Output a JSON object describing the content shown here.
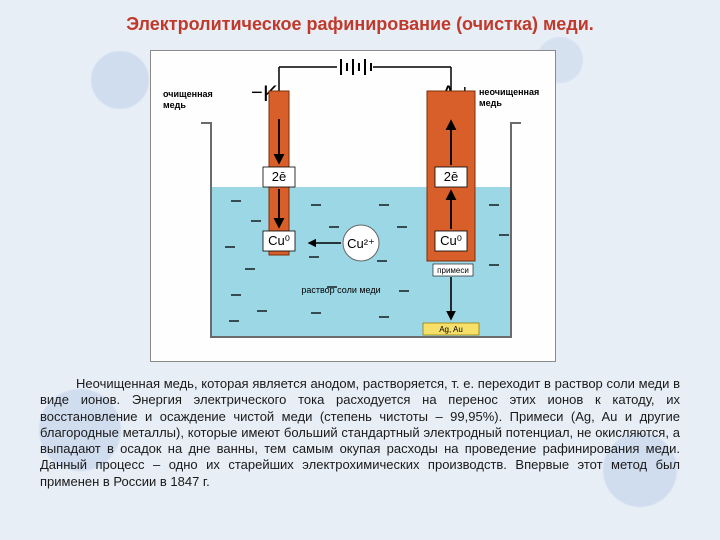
{
  "title": {
    "text": "Электролитическое рафинирование (очистка) меди.",
    "color": "#c0392b",
    "fontsize": 18
  },
  "diagram": {
    "background": "#ffffff",
    "border": "#8a8a8a",
    "beaker": {
      "stroke": "#6b6b6b",
      "stroke_width": 2,
      "fill_top": "#ffffff",
      "fill_solution": "#9cd7e6"
    },
    "solution_label": "раствор соли меди",
    "solution_label_fontsize": 9,
    "ion": "Cu²⁺",
    "ion_circle_stroke": "#666",
    "cathode": {
      "sign": "−",
      "letter": "K",
      "side_label": "очищенная медь",
      "side_label_fontsize": 9,
      "electrode_fill": "#d85f2a",
      "electrode_stroke": "#7a2d0a",
      "e_label": "2ē",
      "cu_label": "Cu⁰"
    },
    "anode": {
      "sign": "+",
      "letter": "A",
      "side_label": "неочищенная медь",
      "side_label_fontsize": 9,
      "electrode_fill": "#d85f2a",
      "electrode_stroke": "#7a2d0a",
      "e_label": "2ē",
      "cu_label": "Cu⁰",
      "impurities_label": "примеси",
      "impurities_fontsize": 8
    },
    "sludge": {
      "fill": "#f6e06a",
      "stroke": "#9c7a00",
      "label": "Ag, Au",
      "label_fontsize": 8
    },
    "battery": {
      "line_color": "#000000"
    },
    "arrow_color": "#000000"
  },
  "paragraph": {
    "text": "Неочищенная медь, которая является анодом, растворяется, т. е. переходит в раствор соли меди в виде ионов. Энергия электрического тока расходуется на перенос этих ионов к катоду, их восстановление и осаждение чистой меди (степень чистоты – 99,95%). Примеси (Ag, Au и другие благородные металлы), которые имеют больший стандартный электродный потенциал, не окисляются, а выпадают в осадок на дне ванны, тем самым окупая расходы на проведение рафинирования меди. Данный процесс – одно их старейших электрохимических производств. Впервые этот метод был применен в России в 1847 г.",
    "fontsize": 13,
    "color": "#1a1a1a"
  }
}
